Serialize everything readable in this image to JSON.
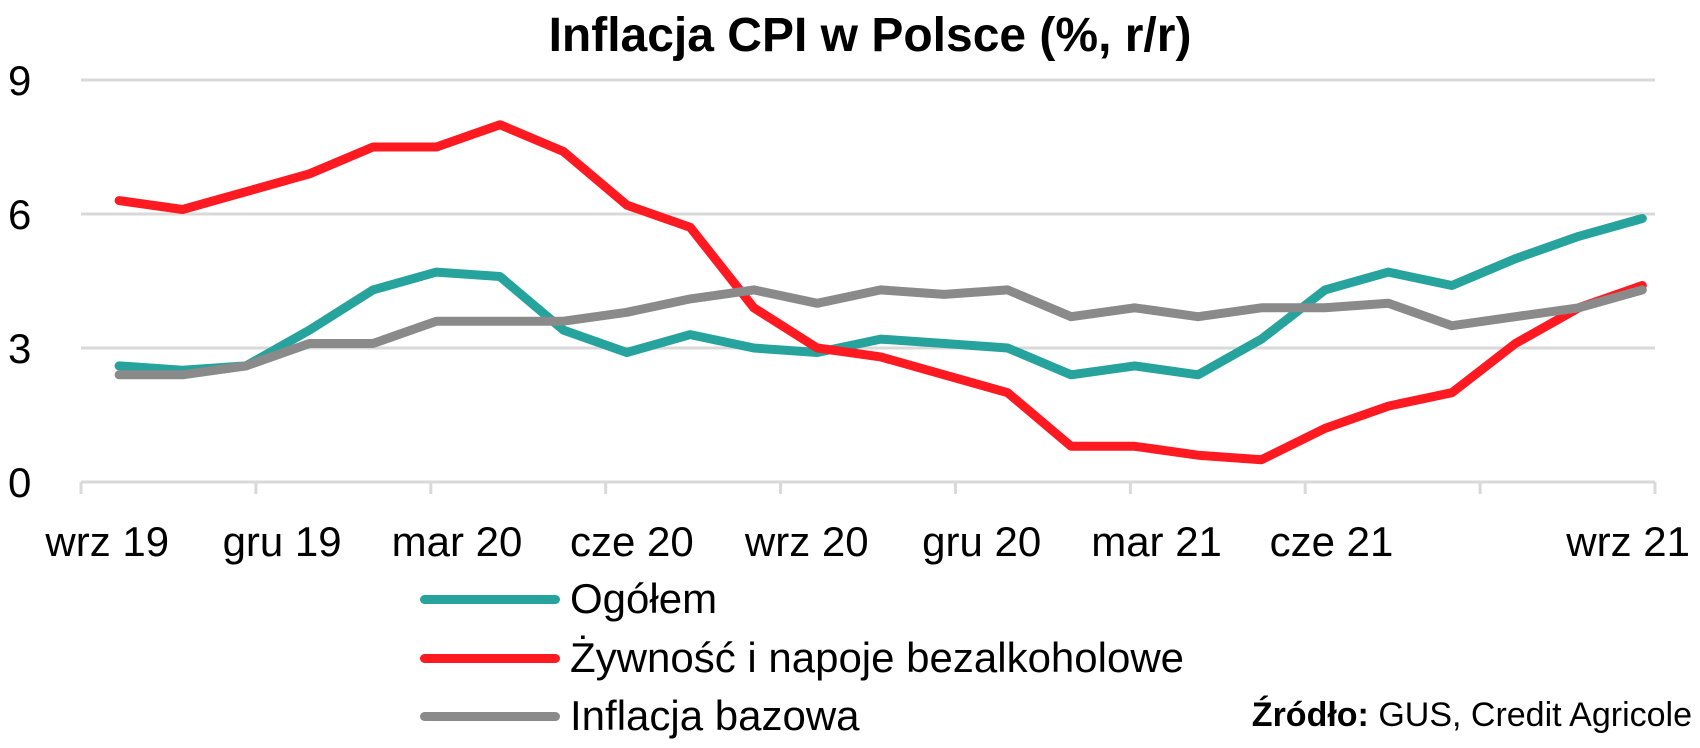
{
  "chart_data": {
    "type": "line",
    "title": "Inflacja CPI w Polsce (%, r/r)",
    "x": [
      "wrz 19",
      "paź 19",
      "lis 19",
      "gru 19",
      "sty 20",
      "lut 20",
      "mar 20",
      "kwi 20",
      "maj 20",
      "cze 20",
      "lip 20",
      "sie 20",
      "wrz 20",
      "paź 20",
      "lis 20",
      "gru 20",
      "sty 21",
      "lut 21",
      "mar 21",
      "kwi 21",
      "maj 21",
      "cze 21",
      "lip 21",
      "sie 21",
      "wrz 21"
    ],
    "tick_labels": [
      "wrz 19",
      "gru 19",
      "mar 20",
      "cze 20",
      "wrz 20",
      "gru 20",
      "mar 21",
      "cze 21",
      "wrz 21"
    ],
    "yticks": [
      0,
      3,
      6,
      9
    ],
    "ylim": [
      0,
      9
    ],
    "grid": true,
    "legend_position": "bottom",
    "series": [
      {
        "name": "Ogółem",
        "color": "#26a39c",
        "values": [
          2.6,
          2.5,
          2.6,
          3.4,
          4.3,
          4.7,
          4.6,
          3.4,
          2.9,
          3.3,
          3.0,
          2.9,
          3.2,
          3.1,
          3.0,
          2.4,
          2.6,
          2.4,
          3.2,
          4.3,
          4.7,
          4.4,
          5.0,
          5.5,
          5.9
        ]
      },
      {
        "name": "Żywność i napoje bezalkoholowe",
        "color": "#ff1a22",
        "values": [
          6.3,
          6.1,
          6.5,
          6.9,
          7.5,
          7.5,
          8.0,
          7.4,
          6.2,
          5.7,
          3.9,
          3.0,
          2.8,
          2.4,
          2.0,
          0.8,
          0.8,
          0.6,
          0.5,
          1.2,
          1.7,
          2.0,
          3.1,
          3.9,
          4.4
        ]
      },
      {
        "name": "Inflacja bazowa",
        "color": "#8a8a8a",
        "values": [
          2.4,
          2.4,
          2.6,
          3.1,
          3.1,
          3.6,
          3.6,
          3.6,
          3.8,
          4.1,
          4.3,
          4.0,
          4.3,
          4.2,
          4.3,
          3.7,
          3.9,
          3.7,
          3.9,
          3.9,
          4.0,
          3.5,
          3.7,
          3.9,
          4.3
        ]
      }
    ]
  },
  "source": {
    "label": "Źródło:",
    "text": " GUS, Credit Agricole"
  }
}
